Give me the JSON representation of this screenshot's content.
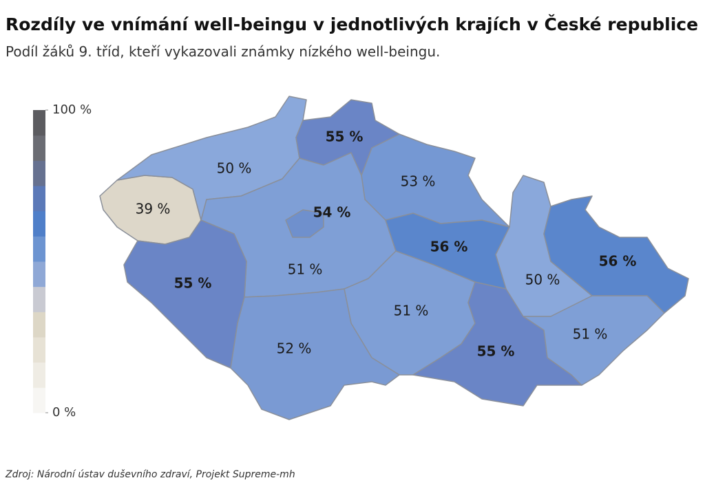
{
  "chart_data": {
    "type": "choropleth",
    "title": "Rozdíly ve vnímání well-beingu v jednotlivých krajích v České republice",
    "subtitle": "Podíl žáků 9. tříd, kteří vykazovali známky nízkého well-beingu.",
    "values": [
      39,
      50,
      55,
      53,
      54,
      51,
      55,
      56,
      51,
      52,
      55,
      50,
      56,
      51
    ],
    "value_labels": [
      "39 %",
      "50 %",
      "55 %",
      "53 %",
      "54 %",
      "51 %",
      "55 %",
      "56 %",
      "51 %",
      "52 %",
      "55 %",
      "50 %",
      "56 %",
      "51 %"
    ],
    "colors": [
      "#ddd7c9",
      "#8aa8db",
      "#6a85c6",
      "#7598d3",
      "#6f90cd",
      "#7f9fd6",
      "#6a85c6",
      "#5a86cc",
      "#7f9fd6",
      "#7a9ad3",
      "#6a85c6",
      "#8aa8db",
      "#5a86cc",
      "#7f9fd6"
    ],
    "legend_range": [
      0,
      100
    ],
    "legend_ticks": [
      {
        "value": 0,
        "label": "0 %"
      },
      {
        "value": 100,
        "label": "100 %"
      }
    ],
    "legend_colors": [
      "#f7f6f3",
      "#efece4",
      "#e7e2d5",
      "#ddd7c6",
      "#c9cad2",
      "#8fa8d6",
      "#6c94d1",
      "#4f7fc9",
      "#5b79b8",
      "#667190",
      "#6b6c73",
      "#5c5c60"
    ],
    "source": "Zdroj: Národní ústav duševního zdraví, Projekt Supreme-mh"
  }
}
